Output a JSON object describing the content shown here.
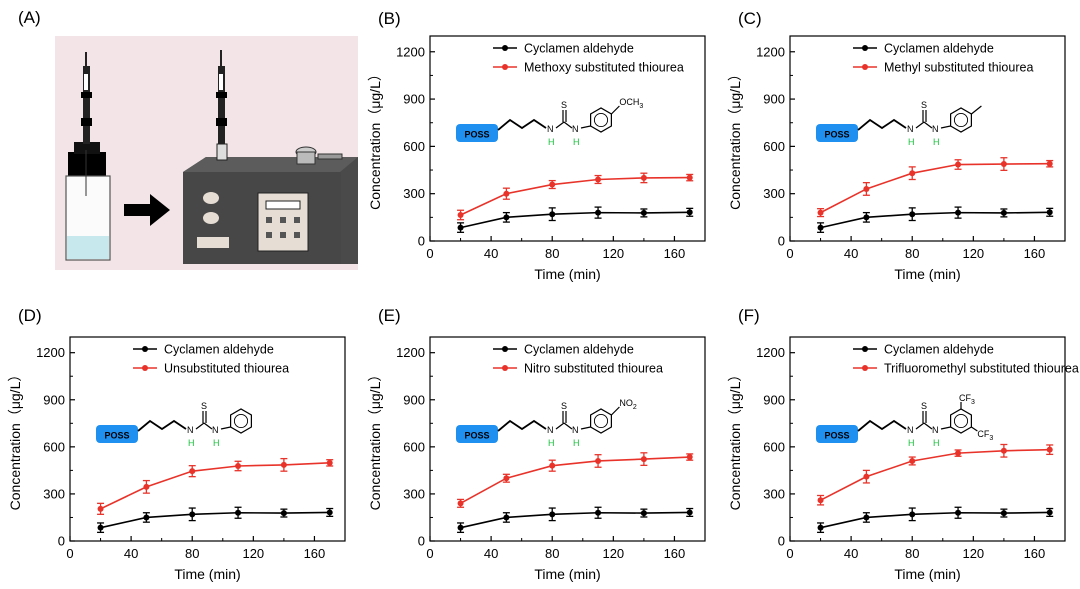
{
  "panel_a": {
    "label": "(A)"
  },
  "chart_data": [
    {
      "panel": "(B)",
      "type": "line",
      "xlabel": "Time (min)",
      "ylabel": "Concentration（μg/L）",
      "xlim": [
        0,
        180
      ],
      "ylim": [
        0,
        1300
      ],
      "xticks": [
        0,
        40,
        80,
        120,
        160
      ],
      "yticks": [
        0,
        300,
        600,
        900,
        1200
      ],
      "x": [
        20,
        50,
        80,
        110,
        140,
        170
      ],
      "series": [
        {
          "name": "Cyclamen aldehyde",
          "color": "#000000",
          "values": [
            85,
            150,
            170,
            180,
            178,
            182
          ],
          "errors": [
            30,
            30,
            40,
            35,
            25,
            25
          ]
        },
        {
          "name": "Methoxy substituted thiourea",
          "color": "#e8332a",
          "values": [
            165,
            300,
            358,
            390,
            400,
            402
          ],
          "errors": [
            30,
            35,
            25,
            25,
            30,
            20
          ]
        }
      ],
      "molecule": {
        "poss": "POSS",
        "substituent": "OCH3",
        "substituent_main": "OCH",
        "substituent_sub": "3"
      }
    },
    {
      "panel": "(C)",
      "type": "line",
      "xlabel": "Time (min)",
      "ylabel": "Concentration（μg/L）",
      "xlim": [
        0,
        180
      ],
      "ylim": [
        0,
        1300
      ],
      "xticks": [
        0,
        40,
        80,
        120,
        160
      ],
      "yticks": [
        0,
        300,
        600,
        900,
        1200
      ],
      "x": [
        20,
        50,
        80,
        110,
        140,
        170
      ],
      "series": [
        {
          "name": "Cyclamen aldehyde",
          "color": "#000000",
          "values": [
            85,
            150,
            170,
            180,
            178,
            182
          ],
          "errors": [
            30,
            30,
            40,
            35,
            25,
            25
          ]
        },
        {
          "name": "Methyl substituted thiourea",
          "color": "#e8332a",
          "values": [
            180,
            330,
            430,
            485,
            488,
            490
          ],
          "errors": [
            25,
            40,
            40,
            30,
            40,
            20
          ]
        }
      ],
      "molecule": {
        "poss": "POSS",
        "substituent": "CH3",
        "substituent_main": "",
        "substituent_sub": ""
      }
    },
    {
      "panel": "(D)",
      "type": "line",
      "xlabel": "Time (min)",
      "ylabel": "Concentration（μg/L）",
      "xlim": [
        0,
        180
      ],
      "ylim": [
        0,
        1300
      ],
      "xticks": [
        0,
        40,
        80,
        120,
        160
      ],
      "yticks": [
        0,
        300,
        600,
        900,
        1200
      ],
      "x": [
        20,
        50,
        80,
        110,
        140,
        170
      ],
      "series": [
        {
          "name": "Cyclamen aldehyde",
          "color": "#000000",
          "values": [
            85,
            150,
            170,
            180,
            178,
            182
          ],
          "errors": [
            30,
            30,
            40,
            35,
            25,
            25
          ]
        },
        {
          "name": "Unsubstituted thiourea",
          "color": "#e8332a",
          "values": [
            205,
            345,
            445,
            478,
            485,
            498
          ],
          "errors": [
            35,
            40,
            35,
            30,
            40,
            20
          ]
        }
      ],
      "molecule": {
        "poss": "POSS",
        "substituent": "",
        "substituent_main": "",
        "substituent_sub": ""
      }
    },
    {
      "panel": "(E)",
      "type": "line",
      "xlabel": "Time (min)",
      "ylabel": "Concentration（μg/L）",
      "xlim": [
        0,
        180
      ],
      "ylim": [
        0,
        1300
      ],
      "xticks": [
        0,
        40,
        80,
        120,
        160
      ],
      "yticks": [
        0,
        300,
        600,
        900,
        1200
      ],
      "x": [
        20,
        50,
        80,
        110,
        140,
        170
      ],
      "series": [
        {
          "name": "Cyclamen aldehyde",
          "color": "#000000",
          "values": [
            85,
            150,
            170,
            180,
            178,
            182
          ],
          "errors": [
            30,
            30,
            40,
            35,
            25,
            25
          ]
        },
        {
          "name": "Nitro substituted thiourea",
          "color": "#e8332a",
          "values": [
            240,
            400,
            480,
            510,
            522,
            535
          ],
          "errors": [
            25,
            25,
            35,
            40,
            40,
            20
          ]
        }
      ],
      "molecule": {
        "poss": "POSS",
        "substituent": "NO2",
        "substituent_main": "NO",
        "substituent_sub": "2"
      }
    },
    {
      "panel": "(F)",
      "type": "line",
      "xlabel": "Time (min)",
      "ylabel": "Concentration（μg/L）",
      "xlim": [
        0,
        180
      ],
      "ylim": [
        0,
        1300
      ],
      "xticks": [
        0,
        40,
        80,
        120,
        160
      ],
      "yticks": [
        0,
        300,
        600,
        900,
        1200
      ],
      "x": [
        20,
        50,
        80,
        110,
        140,
        170
      ],
      "series": [
        {
          "name": "Cyclamen aldehyde",
          "color": "#000000",
          "values": [
            85,
            150,
            170,
            180,
            178,
            182
          ],
          "errors": [
            30,
            30,
            40,
            35,
            25,
            25
          ]
        },
        {
          "name": "Trifluoromethyl substituted thiourea",
          "color": "#e8332a",
          "values": [
            260,
            410,
            510,
            560,
            575,
            582
          ],
          "errors": [
            30,
            40,
            25,
            20,
            40,
            30
          ]
        }
      ],
      "molecule": {
        "poss": "POSS",
        "substituent": "CF3 x2",
        "substituent_main": "CF",
        "substituent_sub": "3"
      }
    }
  ]
}
